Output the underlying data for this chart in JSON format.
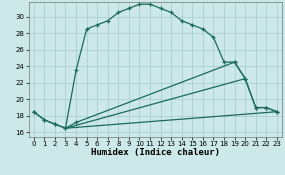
{
  "xlabel": "Humidex (Indice chaleur)",
  "bg_color": "#cce8e8",
  "grid_color": "#aacfcf",
  "line_color": "#1a6b5a",
  "xlim": [
    -0.5,
    23.5
  ],
  "ylim": [
    15.5,
    31.8
  ],
  "xticks": [
    0,
    1,
    2,
    3,
    4,
    5,
    6,
    7,
    8,
    9,
    10,
    11,
    12,
    13,
    14,
    15,
    16,
    17,
    18,
    19,
    20,
    21,
    22,
    23
  ],
  "yticks": [
    16,
    18,
    20,
    22,
    24,
    26,
    28,
    30
  ],
  "line1_x": [
    0,
    1,
    2,
    3,
    4,
    5,
    6,
    7,
    8,
    9,
    10,
    11,
    12,
    13,
    14,
    15,
    16,
    17,
    18,
    19,
    20,
    21,
    22,
    23
  ],
  "line1_y": [
    18.5,
    17.5,
    17.0,
    16.5,
    23.5,
    28.5,
    29.0,
    29.5,
    30.5,
    31.0,
    31.5,
    31.5,
    31.0,
    30.5,
    29.5,
    29.0,
    28.5,
    27.5,
    24.5,
    24.5,
    22.5,
    19.0,
    19.0,
    18.5
  ],
  "line2_x": [
    0,
    1,
    2,
    3,
    4,
    19,
    20,
    21,
    22,
    23
  ],
  "line2_y": [
    18.5,
    17.5,
    17.0,
    16.5,
    17.2,
    24.5,
    22.5,
    19.0,
    19.0,
    18.5
  ],
  "line3_x": [
    3,
    20
  ],
  "line3_y": [
    16.5,
    22.5
  ],
  "line4_x": [
    3,
    23
  ],
  "line4_y": [
    16.5,
    18.5
  ],
  "xlabel_fontsize": 6.5,
  "tick_fontsize": 5.0
}
